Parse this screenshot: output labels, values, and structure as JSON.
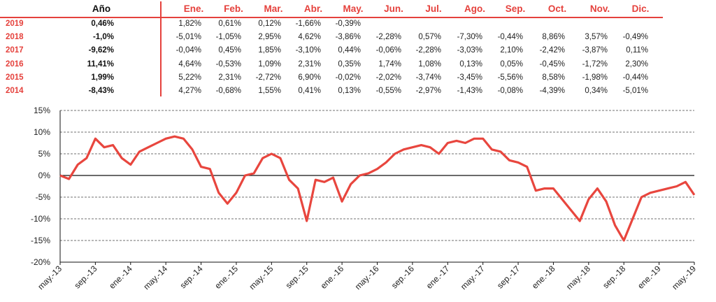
{
  "table": {
    "year_header": "Año",
    "month_headers": [
      "Ene.",
      "Feb.",
      "Mar.",
      "Abr.",
      "May.",
      "Jun.",
      "Jul.",
      "Ago.",
      "Sep.",
      "Oct.",
      "Nov.",
      "Dic."
    ],
    "rows": [
      {
        "year": "2019",
        "annual": "0,46%",
        "months": [
          "1,82%",
          "0,61%",
          "0,12%",
          "-1,66%",
          "-0,39%",
          "",
          "",
          "",
          "",
          "",
          "",
          ""
        ]
      },
      {
        "year": "2018",
        "annual": "-1,0%",
        "months": [
          "-5,01%",
          "-1,05%",
          "2,95%",
          "4,62%",
          "-3,86%",
          "-2,28%",
          "0,57%",
          "-7,30%",
          "-0,44%",
          "8,86%",
          "3,57%",
          "-0,49%"
        ]
      },
      {
        "year": "2017",
        "annual": "-9,62%",
        "months": [
          "-0,04%",
          "0,45%",
          "1,85%",
          "-3,10%",
          "0,44%",
          "-0,06%",
          "-2,28%",
          "-3,03%",
          "2,10%",
          "-2,42%",
          "-3,87%",
          "0,11%"
        ]
      },
      {
        "year": "2016",
        "annual": "11,41%",
        "months": [
          "4,64%",
          "-0,53%",
          "1,09%",
          "2,31%",
          "0,35%",
          "1,74%",
          "1,08%",
          "0,13%",
          "0,05%",
          "-0,45%",
          "-1,72%",
          "2,30%"
        ]
      },
      {
        "year": "2015",
        "annual": "1,99%",
        "months": [
          "5,22%",
          "2,31%",
          "-2,72%",
          "6,90%",
          "-0,02%",
          "-2,02%",
          "-3,74%",
          "-3,45%",
          "-5,56%",
          "8,58%",
          "-1,98%",
          "-0,44%"
        ]
      },
      {
        "year": "2014",
        "annual": "-8,43%",
        "months": [
          "4,27%",
          "-0,68%",
          "1,55%",
          "0,41%",
          "0,13%",
          "-0,55%",
          "-2,97%",
          "-1,43%",
          "-0,08%",
          "-4,39%",
          "0,34%",
          "-5,01%"
        ]
      }
    ]
  },
  "colors": {
    "accent": "#e5413c",
    "line": "#e8463e",
    "grid": "#444444",
    "text": "#222222"
  },
  "chart_data": {
    "type": "line",
    "title": "",
    "xlabel": "",
    "ylabel": "",
    "ylim": [
      -20,
      15
    ],
    "y_ticks": [
      15,
      10,
      5,
      0,
      -5,
      -10,
      -15,
      -20
    ],
    "y_tick_labels": [
      "15%",
      "10%",
      "5%",
      "0%",
      "-5%",
      "-10%",
      "-15%",
      "-20%"
    ],
    "x_tick_labels": [
      "may.-13",
      "sep.-13",
      "ene.-14",
      "may.-14",
      "sep.-14",
      "ene.-15",
      "may.-15",
      "sep.-15",
      "ene.-16",
      "may.-16",
      "sep.-16",
      "ene.-17",
      "may.-17",
      "sep.-17",
      "ene.-18",
      "may.-18",
      "sep.-18",
      "ene.-19",
      "may.-19"
    ],
    "grid": "horizontal dashed",
    "series": [
      {
        "x": [
          "may.-13",
          "jun.-13",
          "jul.-13",
          "ago.-13",
          "sep.-13",
          "oct.-13",
          "nov.-13",
          "dic.-13",
          "ene.-14",
          "feb.-14",
          "mar.-14",
          "abr.-14",
          "may.-14",
          "jun.-14",
          "jul.-14",
          "ago.-14",
          "sep.-14",
          "oct.-14",
          "nov.-14",
          "dic.-14",
          "ene.-15",
          "feb.-15",
          "mar.-15",
          "abr.-15",
          "may.-15",
          "jun.-15",
          "jul.-15",
          "ago.-15",
          "sep.-15",
          "oct.-15",
          "nov.-15",
          "dic.-15",
          "ene.-16",
          "feb.-16",
          "mar.-16",
          "abr.-16",
          "may.-16",
          "jun.-16",
          "jul.-16",
          "ago.-16",
          "sep.-16",
          "oct.-16",
          "nov.-16",
          "dic.-16",
          "ene.-17",
          "feb.-17",
          "mar.-17",
          "abr.-17",
          "may.-17",
          "jun.-17",
          "jul.-17",
          "ago.-17",
          "sep.-17",
          "oct.-17",
          "nov.-17",
          "dic.-17",
          "ene.-18",
          "feb.-18",
          "mar.-18",
          "abr.-18",
          "may.-18",
          "jun.-18",
          "jul.-18",
          "ago.-18",
          "sep.-18",
          "oct.-18",
          "nov.-18",
          "dic.-18",
          "ene.-19",
          "feb.-19",
          "mar.-19",
          "abr.-19",
          "may.-19"
        ],
        "values": [
          0,
          -0.8,
          2.5,
          4,
          8.5,
          6.5,
          7,
          4,
          2.5,
          5.5,
          6.5,
          7.5,
          8.5,
          9,
          8.5,
          6,
          2,
          1.5,
          -4,
          -6.5,
          -4,
          0,
          0.5,
          4,
          5,
          4,
          -1,
          -3,
          -10.5,
          -1,
          -1.5,
          -0.5,
          -6,
          -2,
          0,
          0.5,
          1.5,
          3,
          5,
          6,
          6.5,
          7,
          6.5,
          5,
          7.5,
          8,
          7.5,
          8.5,
          8.5,
          6,
          5.5,
          3.5,
          3,
          2,
          -3.5,
          -3,
          -3,
          -5.5,
          -8,
          -10.5,
          -5.5,
          -3,
          -6,
          -11.5,
          -15,
          -10,
          -5,
          -4,
          -3.5,
          -3,
          -2.5,
          -1.5,
          -4.5
        ]
      }
    ]
  }
}
